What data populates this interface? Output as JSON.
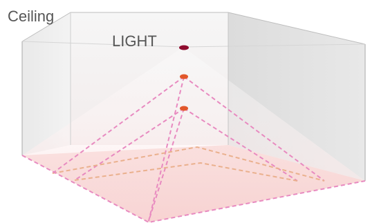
{
  "labels": {
    "ceiling": "Ceiling",
    "light": "LIGHT"
  },
  "colors": {
    "light_source": "#8e0b2e",
    "mount_point": "#e2572b",
    "cone_dash": "#e88ac0",
    "floor_dash": "#eab08d",
    "floor_fill": "#f6c7c5",
    "wall_shade": "#cfcfcf"
  }
}
